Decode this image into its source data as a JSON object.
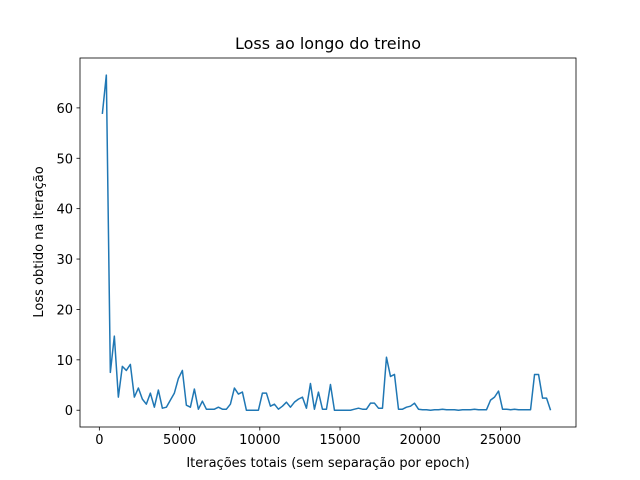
{
  "chart_data": {
    "type": "line",
    "title": "Loss ao longo do treino",
    "x_label": "Iterações totais (sem separação por epoch)",
    "y_label": "Loss obtido na iteração",
    "xlim": [
      -1205,
      29705
    ],
    "ylim": [
      -3.33,
      69.9
    ],
    "xticks": [
      0,
      5000,
      10000,
      15000,
      20000,
      25000
    ],
    "yticks": [
      0,
      10,
      20,
      30,
      40,
      50,
      60
    ],
    "series": [
      {
        "name": "loss",
        "color": "#1f77b4",
        "x": [
          187,
          436,
          686,
          935,
          1185,
          1434,
          1683,
          1933,
          2182,
          2432,
          2681,
          2930,
          3180,
          3429,
          3679,
          3928,
          4177,
          4427,
          4676,
          4926,
          5175,
          5424,
          5674,
          5923,
          6173,
          6422,
          6671,
          6921,
          7170,
          7420,
          7669,
          7918,
          8168,
          8417,
          8667,
          8916,
          9165,
          9415,
          9664,
          9914,
          10163,
          10412,
          10662,
          10911,
          11161,
          11410,
          11659,
          11909,
          12158,
          12408,
          12657,
          12906,
          13156,
          13405,
          13655,
          13904,
          14153,
          14403,
          14652,
          14902,
          15151,
          15400,
          15650,
          15899,
          16149,
          16398,
          16647,
          16897,
          17146,
          17396,
          17645,
          17894,
          18144,
          18393,
          18643,
          18892,
          19141,
          19391,
          19640,
          19890,
          20139,
          20388,
          20638,
          20887,
          21137,
          21386,
          21635,
          21885,
          22134,
          22384,
          22633,
          22882,
          23132,
          23381,
          23631,
          23880,
          24129,
          24379,
          24628,
          24878,
          25127,
          25376,
          25626,
          25875,
          26125,
          26374,
          26623,
          26873,
          27122,
          27372,
          27621,
          27870,
          28120
        ],
        "values": [
          58.8,
          66.5,
          7.5,
          14.7,
          2.6,
          8.7,
          7.9,
          9.1,
          2.6,
          4.4,
          2.2,
          1.2,
          3.4,
          0.6,
          4.0,
          0.4,
          0.6,
          2.0,
          3.4,
          6.3,
          7.9,
          1.0,
          0.6,
          4.2,
          0.2,
          1.8,
          0.2,
          0.2,
          0.2,
          0.6,
          0.2,
          0.2,
          1.2,
          4.4,
          3.2,
          3.6,
          0,
          0,
          0,
          0,
          3.4,
          3.4,
          0.8,
          1.2,
          0.2,
          0.8,
          1.6,
          0.6,
          1.6,
          2.2,
          2.6,
          0.4,
          5.3,
          0.2,
          3.6,
          0.2,
          0.2,
          5.1,
          0,
          0,
          0,
          0,
          0,
          0.2,
          0.4,
          0.2,
          0.2,
          1.4,
          1.4,
          0.4,
          0.4,
          10.5,
          6.7,
          7.1,
          0.2,
          0.2,
          0.6,
          0.8,
          1.4,
          0.2,
          0.1,
          0.1,
          0.0,
          0.1,
          0.1,
          0.2,
          0.1,
          0.1,
          0.1,
          0.0,
          0.1,
          0.1,
          0.1,
          0.2,
          0.1,
          0.1,
          0.1,
          2.0,
          2.6,
          3.8,
          0.2,
          0.2,
          0.1,
          0.2,
          0.1,
          0.1,
          0.1,
          0.1,
          7.1,
          7.1,
          2.4,
          2.4,
          0
        ]
      }
    ]
  }
}
